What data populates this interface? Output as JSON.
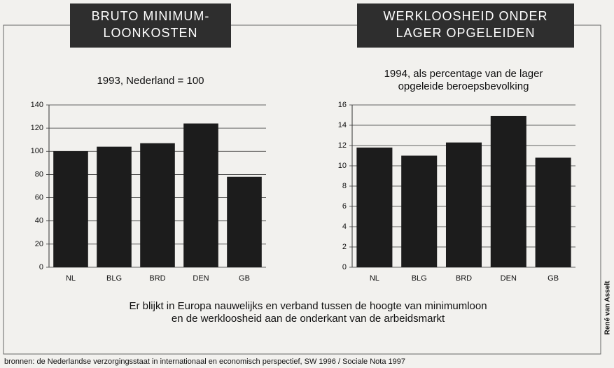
{
  "chart_data": [
    {
      "type": "bar",
      "title": [
        "BRUTO MINIMUM-",
        "LOONKOSTEN"
      ],
      "subtitle": [
        "1993, Nederland = 100"
      ],
      "categories": [
        "NL",
        "BLG",
        "BRD",
        "DEN",
        "GB"
      ],
      "values": [
        100,
        104,
        107,
        124,
        78
      ],
      "color": "#1c1c1c",
      "ylim": [
        0,
        140
      ],
      "yticks": [
        0,
        20,
        40,
        60,
        80,
        100,
        120,
        140
      ],
      "grid": true
    },
    {
      "type": "bar",
      "title": [
        "WERKLOOSHEID ONDER",
        "LAGER OPGELEIDEN"
      ],
      "subtitle": [
        "1994, als percentage van de lager",
        "opgeleide beroepsbevolking"
      ],
      "categories": [
        "NL",
        "BLG",
        "BRD",
        "DEN",
        "GB"
      ],
      "values": [
        11.8,
        11.0,
        12.3,
        14.9,
        10.8
      ],
      "color": "#1c1c1c",
      "ylim": [
        0,
        16
      ],
      "yticks": [
        0,
        2,
        4,
        6,
        8,
        10,
        12,
        14,
        16
      ],
      "grid": true
    }
  ],
  "caption": [
    "Er blijkt in Europa nauwelijks en verband tussen de hoogte van minimumloon",
    "en de werkloosheid aan de onderkant van de arbeidsmarkt"
  ],
  "source": "bronnen: de Nederlandse verzorgingsstaat in internationaal en economisch perspectief, SW 1996 / Sociale Nota 1997",
  "credit": "René van Asselt"
}
